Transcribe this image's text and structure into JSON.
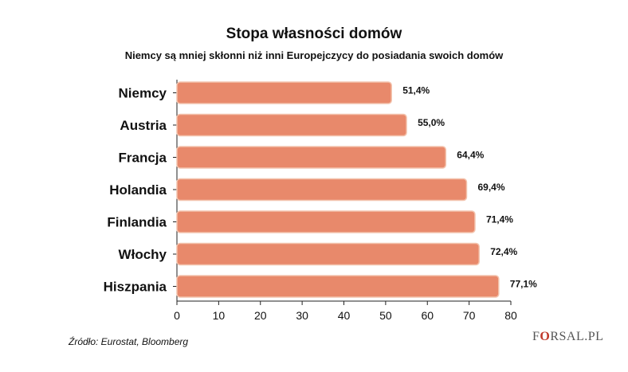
{
  "chart_data": {
    "type": "bar",
    "orientation": "horizontal",
    "title": "Stopa własności domów",
    "subtitle": "Niemcy są mniej skłonni niż inni Europejczycy do posiadania swoich domów",
    "categories": [
      "Niemcy",
      "Austria",
      "Francja",
      "Holandia",
      "Finlandia",
      "Włochy",
      "Hiszpania"
    ],
    "values": [
      51.4,
      55.0,
      64.4,
      69.4,
      71.4,
      72.4,
      77.1
    ],
    "value_labels": [
      "51,4%",
      "55,0%",
      "64,4%",
      "69,4%",
      "71,4%",
      "72,4%",
      "77,1%"
    ],
    "xlim": [
      0,
      80
    ],
    "xticks": [
      0,
      10,
      20,
      30,
      40,
      50,
      60,
      70,
      80
    ],
    "xlabel": "",
    "ylabel": "",
    "grid": false,
    "legend": "none",
    "bar_color": "#e8896b",
    "bar_edge_color": "#f3c3ad"
  },
  "source": "Źródło: Eurostat, Bloomberg",
  "logo": {
    "prefix": "F",
    "mark": "O",
    "suffix": "RSAL.PL"
  }
}
